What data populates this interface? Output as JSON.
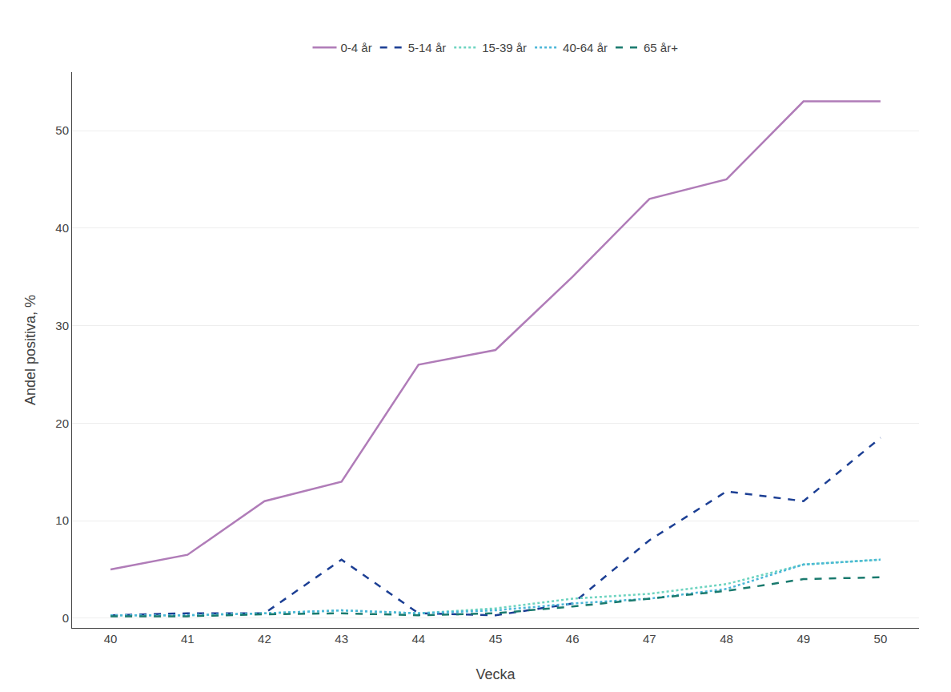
{
  "chart_data": {
    "type": "line",
    "xlabel": "Vecka",
    "ylabel": "Andel positiva, %",
    "x": [
      40,
      41,
      42,
      43,
      44,
      45,
      46,
      47,
      48,
      49,
      50
    ],
    "series": [
      {
        "name": "0-4 år",
        "color": "#b07cb8",
        "line_style": "solid",
        "values": [
          5.0,
          6.5,
          12.0,
          14.0,
          26.0,
          27.5,
          35.0,
          43.0,
          45.0,
          53.0,
          53.0
        ]
      },
      {
        "name": "5-14 år",
        "color": "#1c3f94",
        "line_style": "dashed",
        "values": [
          0.3,
          0.5,
          0.5,
          6.0,
          0.5,
          0.3,
          1.5,
          8.0,
          13.0,
          12.0,
          18.5
        ]
      },
      {
        "name": "15-39 år",
        "color": "#6dd4c0",
        "line_style": "dotted",
        "values": [
          0.3,
          0.3,
          0.5,
          0.8,
          0.5,
          1.0,
          2.0,
          2.5,
          3.5,
          5.5,
          6.0
        ]
      },
      {
        "name": "40-64 år",
        "color": "#4ab6d8",
        "line_style": "dotted",
        "values": [
          0.3,
          0.3,
          0.5,
          0.8,
          0.5,
          0.8,
          1.5,
          2.0,
          3.0,
          5.5,
          6.0
        ]
      },
      {
        "name": "65 år+",
        "color": "#1a7a6e",
        "line_style": "dashed",
        "values": [
          0.2,
          0.2,
          0.4,
          0.5,
          0.3,
          0.5,
          1.2,
          2.0,
          2.8,
          4.0,
          4.2
        ]
      }
    ],
    "xlim": [
      39.5,
      50.5
    ],
    "xticks": [
      40,
      41,
      42,
      43,
      44,
      45,
      46,
      47,
      48,
      49,
      50
    ],
    "ylim": [
      -1,
      56
    ],
    "yticks": [
      0,
      10,
      20,
      30,
      40,
      50
    ],
    "grid": "y",
    "legend": "top"
  }
}
